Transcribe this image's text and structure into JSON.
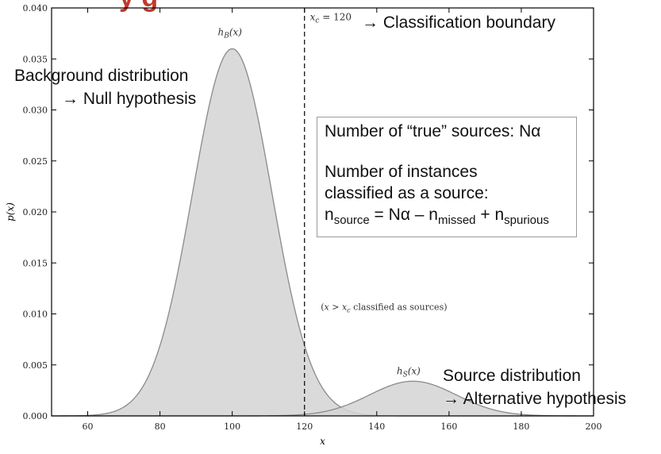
{
  "slide_title_fragment": "y g",
  "chart_data": {
    "type": "area",
    "xlabel": "x",
    "ylabel": "p(x)",
    "xlim": [
      50,
      200
    ],
    "ylim": [
      0,
      0.04
    ],
    "xticks": [
      "60",
      "80",
      "100",
      "120",
      "140",
      "160",
      "180",
      "200"
    ],
    "yticks": [
      "0.000",
      "0.005",
      "0.010",
      "0.015",
      "0.020",
      "0.025",
      "0.030",
      "0.035",
      "0.040"
    ],
    "grid": false,
    "series": [
      {
        "name": "h_B(x)",
        "mean": 100,
        "std": 11,
        "peak": 0.036,
        "x": [
          60,
          70,
          80,
          85,
          90,
          95,
          100,
          105,
          110,
          115,
          120,
          125,
          130,
          140
        ],
        "y": [
          0,
          0.0009,
          0.0068,
          0.0144,
          0.0237,
          0.0324,
          0.036,
          0.0324,
          0.0237,
          0.0144,
          0.0068,
          0.0027,
          0.0009,
          0
        ]
      },
      {
        "name": "h_S(x)",
        "mean": 150,
        "std": 12,
        "peak": 0.0034,
        "x": [
          100,
          110,
          120,
          130,
          140,
          150,
          160,
          170,
          180,
          190,
          200
        ],
        "y": [
          0,
          0.0001,
          0.0007,
          0.0017,
          0.0028,
          0.0034,
          0.0028,
          0.0017,
          0.0007,
          0.0001,
          0
        ]
      }
    ],
    "boundary": {
      "x": 120,
      "label": "x_c = 120"
    },
    "annotations": {
      "h_b_label": "h",
      "h_b_sub": "B",
      "h_b_arg": "(x)",
      "h_s_label": "h",
      "h_s_sub": "S",
      "h_s_arg": "(x)",
      "boundary_label_var": "x",
      "boundary_label_sub": "c",
      "boundary_label_rest": " = 120",
      "classified_note_open": "(",
      "classified_note_var": "x",
      "classified_note_gt": " > ",
      "classified_note_var2": "x",
      "classified_note_sub": "c",
      "classified_note_rest": " classified as sources)"
    }
  },
  "labels": {
    "classification_boundary": "→ Classification boundary",
    "background_line1": "Background distribution",
    "background_line2": "→ Null hypothesis",
    "source_line1": "Source distribution",
    "source_line2": "→ Alternative hypothesis"
  },
  "info_box": {
    "true_sources": "Number of “true” sources: Nα",
    "instances_line1": "Number of instances",
    "instances_line2": "classified as a source:",
    "formula_n": "n",
    "formula_source_sub": "source",
    "formula_mid": " = Nα – n",
    "formula_missed_sub": "missed",
    "formula_plus": " + n",
    "formula_spurious_sub": "spurious"
  },
  "colors": {
    "fill": "#d3d3d3",
    "curve": "#8a8a8a",
    "axis": "#000000",
    "boundary": "#000000",
    "title_fragment": "#c0392b"
  }
}
